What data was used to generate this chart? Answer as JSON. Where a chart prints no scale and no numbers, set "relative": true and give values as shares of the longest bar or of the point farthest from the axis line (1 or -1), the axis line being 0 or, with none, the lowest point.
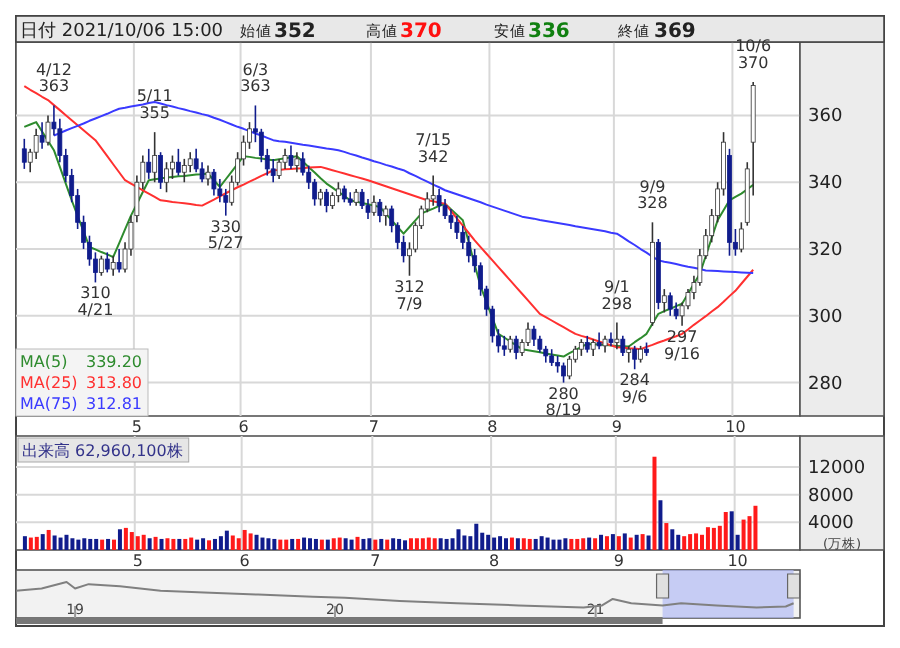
{
  "chart_data": [
    {
      "type": "candlestick",
      "title": "日付 2021/10/06 15:00",
      "legend": "bottom left",
      "grid": true,
      "annotations": [
        "始値352",
        "高値370",
        "安値336",
        "終値369",
        "339.20",
        "313.80",
        "312.81",
        {
          "text": "4/12\n363",
          "y": 363
        },
        {
          "text": "310\n4/21",
          "y": 310
        },
        {
          "text": "5/11\n355",
          "y": 355
        },
        {
          "text": "330\n5/27",
          "y": 330
        },
        {
          "text": "6/3\n363",
          "y": 363
        },
        {
          "text": "312\n7/9",
          "y": 312
        },
        {
          "text": "7/15\n342",
          "y": 342
        },
        {
          "text": "280\n8/19",
          "y": 280
        },
        {
          "text": "9/1\n298",
          "y": 298
        },
        {
          "text": "284\n9/6",
          "y": 284
        },
        {
          "text": "9/9\n328",
          "y": 328
        },
        {
          "text": "297\n9/16",
          "y": 297
        },
        {
          "text": "10/6\n370",
          "y": 370
        }
      ],
      "categories": [
        null,
        null,
        null,
        null,
        null,
        null,
        null,
        null,
        null,
        null,
        null,
        null,
        null,
        null,
        null,
        null,
        null,
        null,
        null,
        "5",
        null,
        null,
        null,
        null,
        null,
        null,
        null,
        null,
        null,
        null,
        null,
        null,
        null,
        null,
        null,
        null,
        null,
        "6",
        null,
        null,
        null,
        null,
        null,
        null,
        null,
        null,
        null,
        null,
        null,
        null,
        null,
        null,
        null,
        null,
        null,
        null,
        null,
        null,
        null,
        "7",
        null,
        null,
        null,
        null,
        null,
        null,
        null,
        null,
        null,
        null,
        null,
        null,
        null,
        null,
        null,
        null,
        null,
        null,
        null,
        "8",
        null,
        null,
        null,
        null,
        null,
        null,
        null,
        null,
        null,
        null,
        null,
        null,
        null,
        null,
        null,
        null,
        null,
        null,
        null,
        null,
        "9",
        null,
        null,
        null,
        null,
        null,
        null,
        null,
        null,
        null,
        null,
        null,
        null,
        null,
        null,
        null,
        null,
        null,
        null,
        null,
        "10",
        null,
        null,
        null
      ],
      "ohlc": [
        [
          350,
          353,
          344,
          346
        ],
        [
          346,
          350,
          343,
          349
        ],
        [
          349,
          356,
          347,
          354
        ],
        [
          354,
          358,
          350,
          352
        ],
        [
          352,
          360,
          351,
          358
        ],
        [
          358,
          363,
          354,
          356
        ],
        [
          356,
          359,
          346,
          348
        ],
        [
          348,
          350,
          340,
          342
        ],
        [
          342,
          344,
          334,
          336
        ],
        [
          336,
          338,
          326,
          328
        ],
        [
          328,
          330,
          320,
          322
        ],
        [
          322,
          324,
          315,
          317
        ],
        [
          317,
          319,
          310,
          313
        ],
        [
          313,
          318,
          312,
          317
        ],
        [
          317,
          319,
          313,
          314
        ],
        [
          314,
          318,
          312,
          316
        ],
        [
          316,
          320,
          313,
          314
        ],
        [
          314,
          322,
          313,
          320
        ],
        [
          320,
          330,
          318,
          328
        ],
        [
          330,
          342,
          328,
          340
        ],
        [
          340,
          348,
          338,
          346
        ],
        [
          346,
          350,
          341,
          343
        ],
        [
          343,
          355,
          340,
          348
        ],
        [
          348,
          349,
          338,
          340
        ],
        [
          340,
          346,
          337,
          344
        ],
        [
          344,
          348,
          341,
          346
        ],
        [
          346,
          350,
          342,
          343
        ],
        [
          343,
          347,
          340,
          345
        ],
        [
          345,
          349,
          343,
          347
        ],
        [
          347,
          350,
          343,
          344
        ],
        [
          344,
          346,
          340,
          341
        ],
        [
          341,
          345,
          339,
          343
        ],
        [
          343,
          344,
          336,
          338
        ],
        [
          338,
          341,
          334,
          336
        ],
        [
          336,
          338,
          330,
          334
        ],
        [
          334,
          342,
          333,
          340
        ],
        [
          340,
          349,
          339,
          347
        ],
        [
          347,
          354,
          345,
          352
        ],
        [
          352,
          358,
          350,
          356
        ],
        [
          356,
          363,
          352,
          355
        ],
        [
          355,
          356,
          346,
          348
        ],
        [
          348,
          350,
          342,
          344
        ],
        [
          344,
          347,
          340,
          342
        ],
        [
          342,
          347,
          341,
          346
        ],
        [
          346,
          350,
          344,
          348
        ],
        [
          348,
          351,
          344,
          345
        ],
        [
          345,
          349,
          343,
          347
        ],
        [
          347,
          349,
          342,
          343
        ],
        [
          343,
          345,
          338,
          340
        ],
        [
          340,
          341,
          333,
          335
        ],
        [
          335,
          338,
          333,
          337
        ],
        [
          337,
          338,
          331,
          333
        ],
        [
          333,
          337,
          332,
          336
        ],
        [
          336,
          340,
          334,
          338
        ],
        [
          338,
          339,
          334,
          335
        ],
        [
          335,
          337,
          333,
          334
        ],
        [
          334,
          338,
          333,
          337
        ],
        [
          337,
          338,
          332,
          333
        ],
        [
          333,
          335,
          329,
          331
        ],
        [
          331,
          336,
          330,
          334
        ],
        [
          334,
          335,
          328,
          330
        ],
        [
          330,
          333,
          327,
          332
        ],
        [
          332,
          333,
          325,
          327
        ],
        [
          327,
          328,
          320,
          322
        ],
        [
          322,
          324,
          316,
          318
        ],
        [
          318,
          322,
          312,
          320
        ],
        [
          320,
          328,
          319,
          327
        ],
        [
          327,
          333,
          326,
          332
        ],
        [
          332,
          337,
          331,
          335
        ],
        [
          335,
          342,
          333,
          336
        ],
        [
          336,
          338,
          331,
          333
        ],
        [
          333,
          335,
          329,
          330
        ],
        [
          330,
          332,
          326,
          328
        ],
        [
          328,
          330,
          323,
          325
        ],
        [
          325,
          327,
          320,
          322
        ],
        [
          322,
          324,
          316,
          318
        ],
        [
          318,
          320,
          313,
          315
        ],
        [
          315,
          316,
          306,
          308
        ],
        [
          308,
          309,
          300,
          302
        ],
        [
          302,
          303,
          292,
          294
        ],
        [
          294,
          296,
          289,
          291
        ],
        [
          291,
          294,
          288,
          290
        ],
        [
          290,
          294,
          289,
          293
        ],
        [
          293,
          294,
          287,
          289
        ],
        [
          289,
          293,
          288,
          292
        ],
        [
          292,
          298,
          291,
          296
        ],
        [
          296,
          297,
          291,
          293
        ],
        [
          293,
          294,
          289,
          290
        ],
        [
          290,
          291,
          286,
          288
        ],
        [
          288,
          290,
          285,
          286
        ],
        [
          286,
          288,
          283,
          285
        ],
        [
          285,
          286,
          280,
          282
        ],
        [
          282,
          288,
          281,
          287
        ],
        [
          287,
          291,
          286,
          290
        ],
        [
          290,
          293,
          288,
          292
        ],
        [
          292,
          294,
          289,
          290
        ],
        [
          290,
          293,
          288,
          292
        ],
        [
          292,
          295,
          290,
          291
        ],
        [
          291,
          294,
          289,
          293
        ],
        [
          293,
          295,
          291,
          292
        ],
        [
          292,
          298,
          290,
          293
        ],
        [
          293,
          294,
          288,
          289
        ],
        [
          289,
          291,
          286,
          290
        ],
        [
          290,
          291,
          284,
          287
        ],
        [
          287,
          291,
          286,
          290
        ],
        [
          290,
          292,
          288,
          289
        ],
        [
          298,
          328,
          297,
          322
        ],
        [
          322,
          323,
          302,
          304
        ],
        [
          304,
          308,
          301,
          306
        ],
        [
          306,
          307,
          300,
          302
        ],
        [
          302,
          304,
          299,
          300
        ],
        [
          300,
          304,
          297,
          303
        ],
        [
          303,
          308,
          302,
          307
        ],
        [
          307,
          312,
          305,
          310
        ],
        [
          310,
          320,
          309,
          318
        ],
        [
          318,
          326,
          317,
          324
        ],
        [
          324,
          332,
          322,
          330
        ],
        [
          330,
          340,
          328,
          338
        ],
        [
          338,
          355,
          336,
          352
        ],
        [
          348,
          350,
          318,
          322
        ],
        [
          322,
          326,
          318,
          320
        ],
        [
          320,
          328,
          319,
          326
        ],
        [
          328,
          346,
          327,
          344
        ],
        [
          352,
          370,
          336,
          369
        ]
      ],
      "series": [
        {
          "name": "MA(5)",
          "type": "line",
          "color": "#2e8b2e",
          "values": [
            356.6,
            357.3,
            358,
            355.2,
            352.4,
            349.6,
            344.6,
            339.6,
            334.6,
            329.9,
            325.3,
            320.6,
            319.9,
            319.1,
            318.4,
            317.6,
            321.7,
            325.9,
            330,
            333.5,
            337.1,
            340.6,
            340.9,
            341.1,
            341.4,
            341.6,
            341.8,
            341.9,
            342.1,
            342.3,
            342.4,
            342.6,
            340.6,
            338.6,
            340.9,
            343.2,
            345.5,
            347.8,
            347.6,
            347.3,
            347.1,
            346.8,
            346.6,
            346.9,
            347.2,
            347.5,
            347.8,
            346.2,
            344.5,
            342.9,
            341.2,
            339.6,
            338.4,
            337.1,
            335.9,
            334.6,
            334.2,
            333.8,
            333.4,
            333,
            332.6,
            330.6,
            328.6,
            326.6,
            324.6,
            326.6,
            328.6,
            330.6,
            331.4,
            332.1,
            332.9,
            333.6,
            331.9,
            330.3,
            328.6,
            322,
            315.4,
            308.8,
            304.1,
            299.3,
            294.6,
            293.5,
            292.3,
            291.2,
            290,
            289.7,
            289.4,
            289.1,
            288.7,
            288.4,
            288.1,
            287.8,
            288.8,
            289.7,
            290.7,
            291.6,
            291.5,
            291.4,
            291.3,
            291.1,
            291,
            290.9,
            290.8,
            292.1,
            293.3,
            294.6,
            297.6,
            300.6,
            301.4,
            302.1,
            302.9,
            303.6,
            306.6,
            309.6,
            312.6,
            317.9,
            323.3,
            328.6,
            331.6,
            334.6,
            335.6,
            336.6,
            337.9,
            339.2
          ]
        },
        {
          "name": "MA(25)",
          "type": "line",
          "color": "#ff3030",
          "values": [
            368.8,
            367.7,
            366.7,
            365.6,
            364.6,
            363.1,
            361.6,
            360.1,
            358.6,
            357.1,
            355.6,
            354.1,
            352.6,
            350.2,
            347.8,
            345.4,
            343,
            340.6,
            339.6,
            338.6,
            337.6,
            336.6,
            335.6,
            334.6,
            334.4,
            334.1,
            333.9,
            333.7,
            333.5,
            333.2,
            333,
            333.9,
            334.8,
            335.8,
            336.7,
            337.6,
            338.5,
            339.3,
            340.2,
            341,
            341.9,
            342.7,
            343.6,
            343.7,
            343.9,
            344,
            344.1,
            344.2,
            344.4,
            344.5,
            344.6,
            344.1,
            343.6,
            343.1,
            342.6,
            342.1,
            341.6,
            341.1,
            340.6,
            340,
            339.4,
            338.8,
            338.2,
            337.6,
            337,
            336.4,
            335.8,
            335.2,
            334.6,
            334.3,
            333.9,
            333.6,
            331.4,
            329.2,
            327,
            324.8,
            322.6,
            320.6,
            318.6,
            316.6,
            314.6,
            312.6,
            310.6,
            308.6,
            306.6,
            304.6,
            302.6,
            300.6,
            299.6,
            298.6,
            297.6,
            296.6,
            295.6,
            294.6,
            294,
            293.5,
            292.9,
            292.3,
            291.7,
            291.2,
            290.6,
            290.5,
            290.3,
            290.2,
            290,
            290.7,
            291.3,
            292,
            292.6,
            293.3,
            293.9,
            294.6,
            295.9,
            297.3,
            298.6,
            299.9,
            301.3,
            302.6,
            304.2,
            305.9,
            307.5,
            309.6,
            311.7,
            313.8
          ]
        },
        {
          "name": "MA(75)",
          "type": "line",
          "color": "#3a3aff",
          "values": [
            null,
            null,
            null,
            null,
            null,
            354,
            354.7,
            355.5,
            356.2,
            356.9,
            357.6,
            358.4,
            359.1,
            359.8,
            360.5,
            361.3,
            362,
            362.3,
            362.7,
            363,
            363.3,
            363.7,
            364,
            363.6,
            363.1,
            362.7,
            362.2,
            361.8,
            361.3,
            360.9,
            360.4,
            360,
            359.3,
            358.7,
            358,
            357.3,
            356.6,
            356,
            355.3,
            354.6,
            354,
            353.3,
            352.6,
            352.3,
            352.1,
            351.8,
            351.5,
            351.2,
            351,
            350.7,
            350.4,
            350.1,
            349.9,
            349.6,
            349.1,
            348.5,
            348,
            347.4,
            346.9,
            346.3,
            345.8,
            345.2,
            344.7,
            344.1,
            343.6,
            342.7,
            341.9,
            341,
            340.2,
            339.3,
            338.5,
            337.6,
            337,
            336.4,
            335.8,
            335.2,
            334.6,
            334,
            333.3,
            332.7,
            332.1,
            331.5,
            330.9,
            330.3,
            329.7,
            329.4,
            329.1,
            328.7,
            328.4,
            328.1,
            327.8,
            327.5,
            327.2,
            326.8,
            326.5,
            326.2,
            325.9,
            325.6,
            325.3,
            324.9,
            324.6,
            323.5,
            322.3,
            321.2,
            320,
            318.9,
            317.7,
            316.6,
            316.2,
            315.9,
            315.5,
            315.1,
            314.7,
            314.4,
            314,
            313.6,
            313.5,
            313.4,
            313.3,
            313.2,
            313.1,
            313,
            312.9,
            312.8
          ]
        }
      ],
      "ylim": [
        270,
        382
      ],
      "yticks": [
        280,
        300,
        320,
        340,
        360
      ]
    },
    {
      "type": "bar",
      "title": "出来高 62,960,100株",
      "ylabel": "(万株)",
      "grid": true,
      "colors": [
        null,
        "#101c8c",
        "#ff1a1a",
        "#ff1a1a",
        "#101c8c",
        "#ff1a1a",
        "#101c8c",
        "#101c8c",
        "#101c8c",
        "#101c8c",
        "#101c8c",
        "#101c8c",
        "#101c8c",
        "#101c8c",
        "#ff1a1a",
        "#101c8c",
        "#ff1a1a",
        "#101c8c",
        "#ff1a1a",
        "#ff1a1a",
        "#ff1a1a",
        "#ff1a1a",
        "#101c8c",
        "#ff1a1a",
        "#101c8c",
        "#ff1a1a",
        "#ff1a1a",
        "#101c8c",
        "#ff1a1a",
        "#ff1a1a",
        "#101c8c",
        "#101c8c",
        "#ff1a1a",
        "#101c8c",
        "#101c8c",
        "#101c8c",
        "#ff1a1a",
        "#ff1a1a",
        "#ff1a1a",
        "#ff1a1a",
        "#101c8c",
        "#101c8c",
        "#101c8c",
        "#101c8c",
        "#ff1a1a",
        "#ff1a1a",
        "#101c8c",
        "#ff1a1a",
        "#101c8c",
        "#101c8c",
        "#101c8c",
        "#ff1a1a",
        "#101c8c",
        "#ff1a1a",
        "#ff1a1a",
        "#101c8c",
        "#101c8c",
        "#ff1a1a",
        "#101c8c",
        "#101c8c",
        "#ff1a1a",
        "#101c8c",
        "#ff1a1a",
        "#101c8c",
        "#101c8c",
        "#101c8c",
        "#ff1a1a",
        "#ff1a1a",
        "#ff1a1a",
        "#ff1a1a",
        "#ff1a1a",
        "#101c8c",
        "#101c8c",
        "#101c8c",
        "#101c8c",
        "#101c8c",
        "#101c8c",
        "#101c8c",
        "#101c8c",
        "#101c8c",
        "#101c8c",
        "#101c8c",
        "#101c8c",
        "#ff1a1a",
        "#101c8c",
        "#ff1a1a",
        "#ff1a1a",
        "#101c8c",
        "#101c8c",
        "#101c8c",
        "#101c8c",
        "#101c8c",
        "#101c8c",
        "#ff1a1a",
        "#ff1a1a",
        "#ff1a1a",
        "#101c8c",
        "#ff1a1a",
        "#101c8c",
        "#ff1a1a",
        "#101c8c",
        "#ff1a1a",
        "#101c8c",
        "#ff1a1a",
        "#101c8c",
        "#ff1a1a",
        "#101c8c",
        "#ff1a1a",
        "#101c8c",
        "#ff1a1a",
        "#101c8c",
        "#101c8c",
        "#ff1a1a",
        "#ff1a1a",
        "#ff1a1a",
        "#ff1a1a",
        "#ff1a1a",
        "#ff1a1a",
        "#ff1a1a",
        "#ff1a1a",
        "#101c8c",
        "#101c8c",
        "#ff1a1a",
        "#ff1a1a",
        "#ff1a1a",
        null,
        null,
        null,
        null,
        null,
        null,
        null
      ],
      "categories": [
        null,
        null,
        null,
        null,
        null,
        null,
        null,
        null,
        null,
        null,
        null,
        null,
        null,
        null,
        null,
        null,
        null,
        null,
        null,
        null,
        "5",
        null,
        null,
        null,
        null,
        null,
        null,
        null,
        null,
        null,
        null,
        null,
        null,
        null,
        null,
        null,
        null,
        null,
        "6",
        null,
        null,
        null,
        null,
        null,
        null,
        null,
        null,
        null,
        null,
        null,
        null,
        null,
        null,
        null,
        null,
        null,
        null,
        null,
        null,
        null,
        "7",
        null,
        null,
        null,
        null,
        null,
        null,
        null,
        null,
        null,
        null,
        null,
        null,
        null,
        null,
        null,
        null,
        null,
        null,
        null,
        "8",
        null,
        null,
        null,
        null,
        null,
        null,
        null,
        null,
        null,
        null,
        null,
        null,
        null,
        null,
        null,
        null,
        null,
        null,
        null,
        null,
        "9",
        null,
        null,
        null,
        null,
        null,
        null,
        null,
        null,
        null,
        null,
        null,
        null,
        null,
        null,
        null,
        null,
        null,
        null,
        null,
        "10",
        null,
        null,
        null,
        null,
        null,
        null,
        null,
        null,
        null,
        null
      ],
      "values": [
        null,
        2000,
        1800,
        1900,
        2300,
        2900,
        2100,
        1800,
        2200,
        1700,
        1500,
        1700,
        1600,
        1600,
        1500,
        1600,
        1500,
        3000,
        3200,
        2600,
        2000,
        2200,
        1700,
        1900,
        1600,
        1700,
        1600,
        1600,
        1600,
        1800,
        1500,
        1700,
        1400,
        1600,
        2000,
        2800,
        2100,
        1700,
        2900,
        2400,
        2200,
        1800,
        1700,
        1600,
        1500,
        1500,
        1600,
        1600,
        1800,
        1700,
        1600,
        1500,
        1500,
        1700,
        1800,
        1700,
        1500,
        1900,
        1600,
        1700,
        1500,
        1600,
        1500,
        1700,
        1600,
        1400,
        1700,
        1700,
        1700,
        1800,
        1700,
        1700,
        1600,
        1700,
        3000,
        2100,
        2000,
        3800,
        2500,
        2200,
        1800,
        2000,
        1700,
        1800,
        1700,
        1700,
        1600,
        1600,
        2000,
        1800,
        1500,
        1500,
        1700,
        1600,
        1600,
        1700,
        1800,
        1700,
        2200,
        2000,
        2300,
        2000,
        2400,
        1800,
        2200,
        2300,
        2100,
        13500,
        7200,
        3900,
        3000,
        2200,
        2000,
        2300,
        2400,
        2200,
        3300,
        3200,
        3500,
        5500,
        5600,
        2200,
        4400,
        4900,
        6400,
        null,
        null,
        null,
        null,
        null,
        null,
        null
      ],
      "ylim": [
        0,
        16500
      ],
      "yticks": [
        4000,
        8000,
        12000
      ]
    },
    {
      "type": "line",
      "relative": true,
      "series": [
        {
          "color": "#808080",
          "x": [
            "2018-10-10",
            "2018-11-15",
            "2018-12-20",
            "2019-01-01",
            "2019-01-20",
            "2019-03-05",
            "2019-05-01",
            "2019-07-01",
            "2019-09-15",
            "2019-12-01",
            "2020-01-15",
            "2020-04-01",
            "2020-06-20",
            "2020-09-15",
            "2020-12-15",
            "2021-01-10",
            "2021-01-25",
            "2021-02-20",
            "2021-04-05",
            "2021-05-01",
            "2021-06-20",
            "2021-08-15",
            "2021-09-25",
            "2021-10-06"
          ],
          "values": [
            0.76,
            0.82,
            1,
            0.82,
            0.94,
            0.88,
            0.76,
            0.71,
            0.65,
            0.59,
            0.56,
            0.47,
            0.41,
            0.35,
            0.29,
            0.35,
            0.53,
            0.41,
            0.35,
            0.41,
            0.35,
            0.29,
            0.32,
            0.41
          ]
        }
      ],
      "bands": [
        {
          "axis": "x",
          "from": "2021-04-05",
          "to": "2021-10-06",
          "color": "#b4bcf5"
        }
      ],
      "xlim": [
        "2018-10-10",
        "2021-10-15"
      ],
      "xticks": [
        {
          "value": "2019-01-01",
          "label": "19"
        },
        {
          "value": "2020-01-01",
          "label": "20"
        },
        {
          "value": "2021-01-01",
          "label": "21"
        }
      ]
    }
  ]
}
